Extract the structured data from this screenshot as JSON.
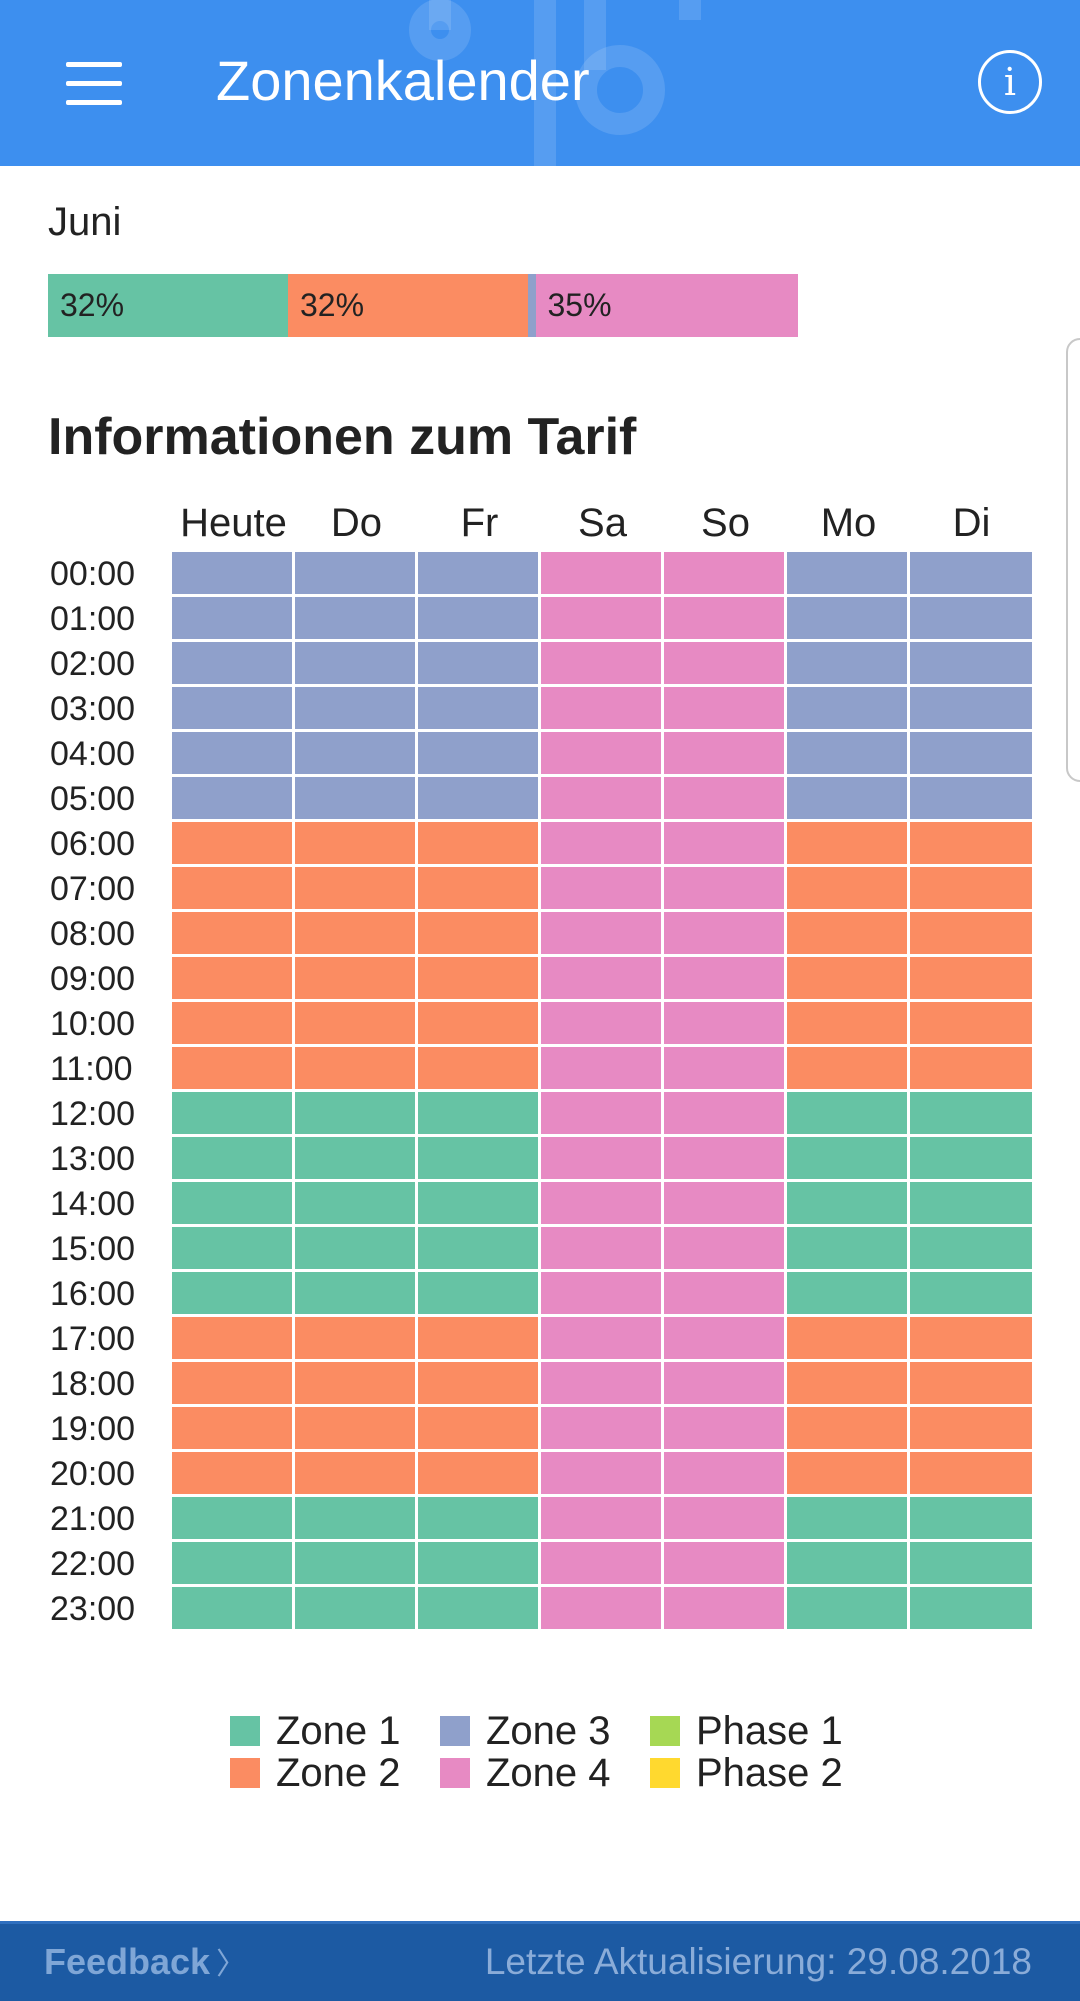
{
  "appbar": {
    "title": "Zonenkalender",
    "menu_icon": "menu-icon",
    "info_icon": "info-icon",
    "info_glyph": "i"
  },
  "month_summary": {
    "month": "Juni",
    "segments": [
      {
        "zone": "Zone 1",
        "label": "32%",
        "percent": 32
      },
      {
        "zone": "Zone 2",
        "label": "32%",
        "percent": 32
      },
      {
        "zone": "Zone 3",
        "label": "",
        "percent": 1
      },
      {
        "zone": "Zone 4",
        "label": "35%",
        "percent": 35
      }
    ]
  },
  "tariff": {
    "title": "Informationen zum Tarif",
    "days": [
      "Heute",
      "Do",
      "Fr",
      "Sa",
      "So",
      "Mo",
      "Di"
    ],
    "hours": [
      "00:00",
      "01:00",
      "02:00",
      "03:00",
      "04:00",
      "05:00",
      "06:00",
      "07:00",
      "08:00",
      "09:00",
      "10:00",
      "11:00",
      "12:00",
      "13:00",
      "14:00",
      "15:00",
      "16:00",
      "17:00",
      "18:00",
      "19:00",
      "20:00",
      "21:00",
      "22:00",
      "23:00"
    ],
    "weekday_zones": [
      3,
      3,
      3,
      3,
      3,
      3,
      2,
      2,
      2,
      2,
      2,
      2,
      1,
      1,
      1,
      1,
      1,
      2,
      2,
      2,
      2,
      1,
      1,
      1
    ],
    "weekend_zones": [
      4,
      4,
      4,
      4,
      4,
      4,
      4,
      4,
      4,
      4,
      4,
      4,
      4,
      4,
      4,
      4,
      4,
      4,
      4,
      4,
      4,
      4,
      4,
      4
    ],
    "day_types": [
      "weekday",
      "weekday",
      "weekday",
      "weekend",
      "weekend",
      "weekday",
      "weekday"
    ]
  },
  "legend": [
    {
      "label": "Zone 1",
      "key": "zone1"
    },
    {
      "label": "Zone 3",
      "key": "zone3"
    },
    {
      "label": "Phase 1",
      "key": "phase1"
    },
    {
      "label": "Zone 2",
      "key": "zone2"
    },
    {
      "label": "Zone 4",
      "key": "zone4"
    },
    {
      "label": "Phase 2",
      "key": "phase2"
    }
  ],
  "colors": {
    "appbar": "#3d8fef",
    "zone1": "#66c3a4",
    "zone2": "#fb8c62",
    "zone3": "#8fa0cb",
    "zone4": "#e78ac3",
    "phase1": "#a6d854",
    "phase2": "#ffd92f",
    "footer": "#1c5aa3"
  },
  "footer": {
    "feedback": "Feedback",
    "chevron": "〉",
    "last_update": "Letzte Aktualisierung: 29.08.2018"
  }
}
